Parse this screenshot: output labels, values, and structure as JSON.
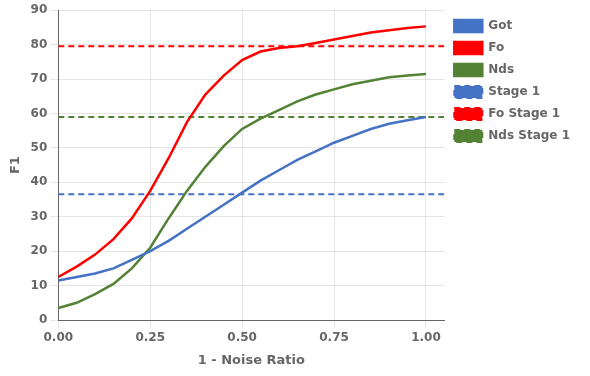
{
  "chart_data": {
    "type": "line",
    "xlabel": "1 - Noise Ratio",
    "ylabel": "F1",
    "xlim": [
      0.0,
      1.05
    ],
    "ylim": [
      0,
      90
    ],
    "xticks": [
      {
        "value": 0.0,
        "label": "0.00"
      },
      0.25,
      {
        "value": 0.5,
        "label": "0.50"
      },
      0.75,
      {
        "value": 1.0,
        "label": "1.00"
      }
    ],
    "yticks": [
      0,
      10,
      20,
      30,
      40,
      50,
      60,
      70,
      80,
      90
    ],
    "grid": true,
    "legend": "right",
    "x": [
      0.0,
      0.05,
      0.1,
      0.15,
      0.2,
      0.25,
      0.3,
      0.35,
      0.4,
      0.45,
      0.5,
      0.55,
      0.6,
      0.65,
      0.7,
      0.75,
      0.8,
      0.85,
      0.9,
      0.95,
      1.0
    ],
    "series": [
      {
        "name": "Got",
        "color": "#4472C4",
        "line_style": "solid",
        "values": [
          11.5,
          12.5,
          13.5,
          15.0,
          17.5,
          20.0,
          23.0,
          26.5,
          30.0,
          33.5,
          37.0,
          40.5,
          43.5,
          46.5,
          49.0,
          51.5,
          53.5,
          55.5,
          57.0,
          58.0,
          59.0
        ]
      },
      {
        "name": "Fo",
        "color": "#FF0000",
        "line_style": "solid",
        "values": [
          12.5,
          15.5,
          19.0,
          23.5,
          29.5,
          37.5,
          47.0,
          57.5,
          65.5,
          71.0,
          75.5,
          78.0,
          79.0,
          79.5,
          80.5,
          81.5,
          82.5,
          83.5,
          84.2,
          84.8,
          85.3
        ]
      },
      {
        "name": "Nds",
        "color": "#548235",
        "line_style": "solid",
        "values": [
          3.5,
          5.0,
          7.5,
          10.5,
          15.0,
          21.0,
          29.5,
          37.5,
          44.5,
          50.5,
          55.5,
          58.5,
          61.0,
          63.5,
          65.5,
          67.0,
          68.5,
          69.5,
          70.5,
          71.0,
          71.5
        ]
      },
      {
        "name": "Stage 1",
        "color": "#4472C4",
        "line_style": "dashed",
        "type": "hline",
        "value": 36.5
      },
      {
        "name": "Fo Stage 1",
        "color": "#FF0000",
        "line_style": "dashed",
        "type": "hline",
        "value": 79.5
      },
      {
        "name": "Nds Stage 1",
        "color": "#548235",
        "line_style": "dashed",
        "type": "hline",
        "value": 59.0
      }
    ]
  }
}
